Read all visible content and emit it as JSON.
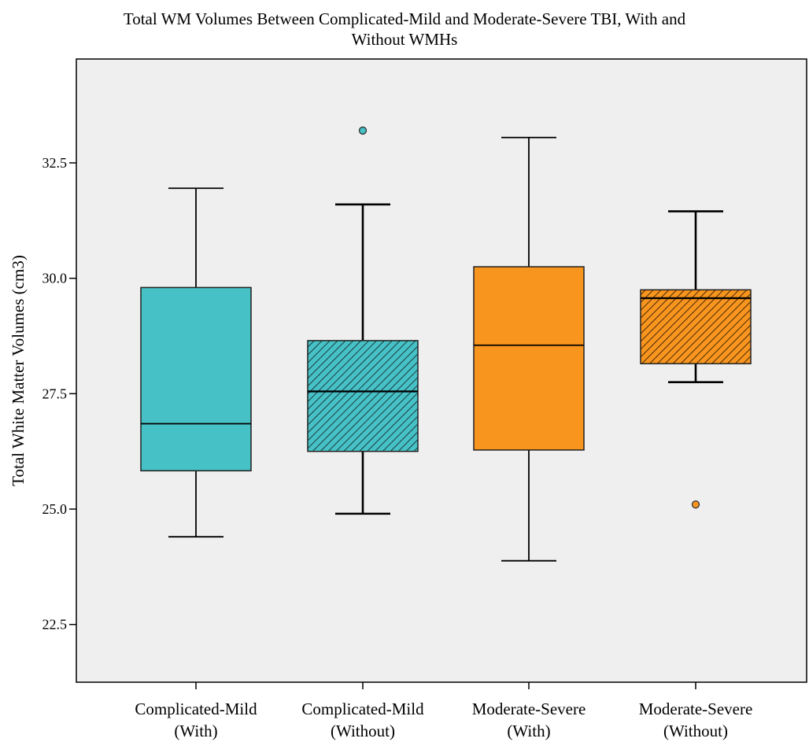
{
  "chart_data": {
    "type": "box",
    "title_lines": [
      "Total WM Volumes Between Complicated-Mild and Moderate-Severe TBI, With and",
      "Without WMHs"
    ],
    "xlabel": "",
    "ylabel": "Total White Matter Volumes (cm3)",
    "ylim": [
      21.25,
      34.75
    ],
    "yticks": [
      22.5,
      25.0,
      27.5,
      30.0,
      32.5
    ],
    "ytick_labels": [
      "22.5",
      "25.0",
      "27.5",
      "30.0",
      "32.5"
    ],
    "grid": false,
    "categories": [
      {
        "line1": "Complicated-Mild",
        "line2": "(With)"
      },
      {
        "line1": "Complicated-Mild",
        "line2": "(Without)"
      },
      {
        "line1": "Moderate-Severe",
        "line2": "(With)"
      },
      {
        "line1": "Moderate-Severe",
        "line2": "(Without)"
      }
    ],
    "boxes": [
      {
        "whisker_low": 24.4,
        "q1": 25.83,
        "median": 26.85,
        "q3": 29.8,
        "whisker_high": 31.95,
        "outliers": [],
        "color": "#46c1c6",
        "hatched": false
      },
      {
        "whisker_low": 24.9,
        "q1": 26.25,
        "median": 27.55,
        "q3": 28.65,
        "whisker_high": 31.6,
        "outliers": [
          33.2
        ],
        "color": "#46c1c6",
        "hatched": true
      },
      {
        "whisker_low": 23.88,
        "q1": 26.28,
        "median": 28.55,
        "q3": 30.25,
        "whisker_high": 33.05,
        "outliers": [],
        "color": "#f7951e",
        "hatched": false
      },
      {
        "whisker_low": 27.75,
        "q1": 28.15,
        "median": 29.57,
        "q3": 29.75,
        "whisker_high": 31.45,
        "outliers": [
          25.1
        ],
        "color": "#f7951e",
        "hatched": true
      }
    ],
    "plot_background": "#efefef"
  }
}
